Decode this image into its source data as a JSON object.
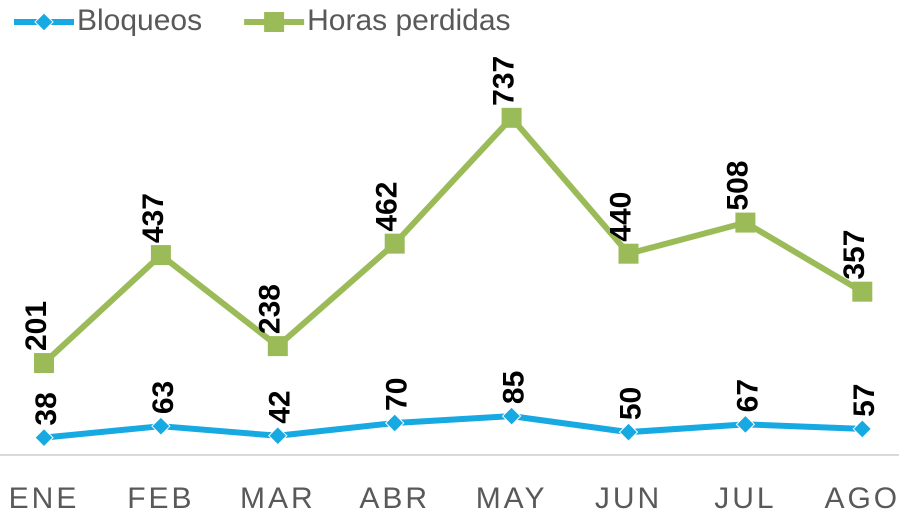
{
  "chart_data": {
    "type": "line",
    "categories": [
      "ENE",
      "FEB",
      "MAR",
      "ABR",
      "MAY",
      "JUN",
      "JUL",
      "AGO"
    ],
    "series": [
      {
        "name": "Bloqueos",
        "color": "#17a9e1",
        "marker": "diamond",
        "values": [
          38,
          63,
          42,
          70,
          85,
          50,
          67,
          57
        ]
      },
      {
        "name": "Horas perdidas",
        "color": "#9bbb59",
        "marker": "square",
        "values": [
          201,
          437,
          238,
          462,
          737,
          440,
          508,
          357
        ]
      }
    ],
    "ylim": [
      0,
      800
    ],
    "legend": "top-left"
  }
}
